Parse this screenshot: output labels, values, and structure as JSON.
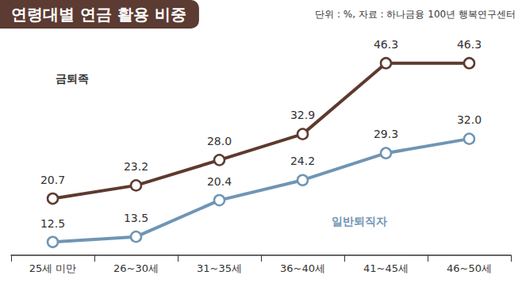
{
  "chart_data": {
    "type": "line",
    "title": "연령대별 연금 활용 비중",
    "subtitle": "단위 : %, 자료 : 하나금융 100년 행복연구센터",
    "categories": [
      "25세 미만",
      "26~30세",
      "31~35세",
      "36~40세",
      "41~45세",
      "46~50세"
    ],
    "series": [
      {
        "name": "금퇴족",
        "color": "#5e3a2f",
        "values": [
          20.7,
          23.2,
          28.0,
          32.9,
          46.3,
          46.3
        ],
        "value_labels": [
          "20.7",
          "23.2",
          "28.0",
          "32.9",
          "46.3",
          "46.3"
        ]
      },
      {
        "name": "일반퇴직자",
        "color": "#6f95b5",
        "values": [
          12.5,
          13.5,
          20.4,
          24.2,
          29.3,
          32.0
        ],
        "value_labels": [
          "12.5",
          "13.5",
          "20.4",
          "24.2",
          "29.3",
          "32.0"
        ]
      }
    ],
    "ylim": [
      10,
      50
    ],
    "yticks": [
      10,
      20,
      30,
      40,
      50
    ],
    "grid": false,
    "tick_labels": "x",
    "data_labels": true,
    "marker": "circle"
  }
}
